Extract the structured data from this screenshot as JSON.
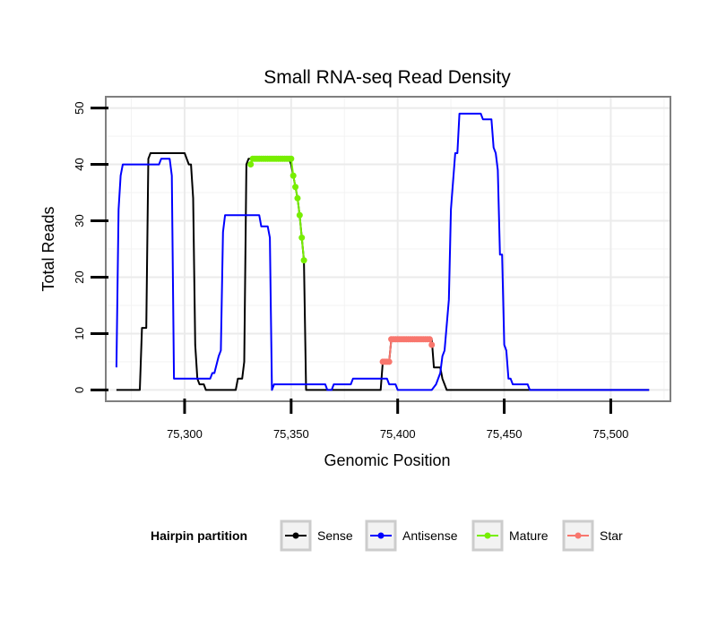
{
  "chart_data": {
    "type": "line",
    "title": "Small RNA-seq Read Density",
    "xlabel": "Genomic Position",
    "ylabel": "Total Reads",
    "xlim": [
      75263,
      75528
    ],
    "ylim": [
      -2,
      52
    ],
    "x_ticks": [
      75300,
      75350,
      75400,
      75450,
      75500
    ],
    "x_tick_labels": [
      "75,300",
      "75,350",
      "75,400",
      "75,450",
      "75,500"
    ],
    "y_ticks": [
      0,
      10,
      20,
      30,
      40,
      50
    ],
    "y_tick_labels": [
      "0",
      "10",
      "20",
      "30",
      "40",
      "50"
    ],
    "grid": true,
    "legend": {
      "title": "Hairpin partition",
      "position": "bottom",
      "entries": [
        "Sense",
        "Antisense",
        "Mature",
        "Star"
      ]
    },
    "series": [
      {
        "name": "Sense",
        "color": "#000000",
        "points": [
          [
            75268,
            0
          ],
          [
            75279,
            0
          ],
          [
            75280,
            11
          ],
          [
            75282,
            11
          ],
          [
            75283,
            41
          ],
          [
            75284,
            42
          ],
          [
            75300,
            42
          ],
          [
            75302,
            40
          ],
          [
            75303,
            40
          ],
          [
            75304,
            34
          ],
          [
            75305,
            8
          ],
          [
            75306,
            2
          ],
          [
            75307,
            1
          ],
          [
            75309,
            1
          ],
          [
            75310,
            0
          ],
          [
            75324,
            0
          ],
          [
            75325,
            2
          ],
          [
            75327,
            2
          ],
          [
            75328,
            5
          ],
          [
            75329,
            40
          ],
          [
            75330,
            41
          ],
          [
            75349,
            41
          ],
          [
            75350,
            40
          ],
          [
            75351,
            38
          ],
          [
            75352,
            36
          ],
          [
            75353,
            34
          ],
          [
            75354,
            31
          ],
          [
            75355,
            27
          ],
          [
            75356,
            23
          ],
          [
            75357,
            0
          ],
          [
            75392,
            0
          ],
          [
            75393,
            5
          ],
          [
            75396,
            5
          ],
          [
            75397,
            9
          ],
          [
            75416,
            9
          ],
          [
            75417,
            4
          ],
          [
            75420,
            4
          ],
          [
            75421,
            2
          ],
          [
            75423,
            0
          ],
          [
            75518,
            0
          ]
        ]
      },
      {
        "name": "Antisense",
        "color": "#0000ff",
        "points": [
          [
            75268,
            4
          ],
          [
            75269,
            32
          ],
          [
            75270,
            38
          ],
          [
            75271,
            40
          ],
          [
            75288,
            40
          ],
          [
            75289,
            41
          ],
          [
            75293,
            41
          ],
          [
            75294,
            38
          ],
          [
            75295,
            2
          ],
          [
            75312,
            2
          ],
          [
            75313,
            3
          ],
          [
            75314,
            3
          ],
          [
            75316,
            6
          ],
          [
            75317,
            7
          ],
          [
            75318,
            28
          ],
          [
            75319,
            31
          ],
          [
            75335,
            31
          ],
          [
            75336,
            29
          ],
          [
            75339,
            29
          ],
          [
            75340,
            27
          ],
          [
            75341,
            0
          ],
          [
            75342,
            1
          ],
          [
            75366,
            1
          ],
          [
            75367,
            0
          ],
          [
            75369,
            0
          ],
          [
            75370,
            1
          ],
          [
            75378,
            1
          ],
          [
            75379,
            2
          ],
          [
            75395,
            2
          ],
          [
            75396,
            1
          ],
          [
            75399,
            1
          ],
          [
            75400,
            0
          ],
          [
            75416,
            0
          ],
          [
            75418,
            1
          ],
          [
            75420,
            3
          ],
          [
            75421,
            6
          ],
          [
            75422,
            7
          ],
          [
            75424,
            16
          ],
          [
            75425,
            32
          ],
          [
            75426,
            37
          ],
          [
            75427,
            42
          ],
          [
            75428,
            42
          ],
          [
            75429,
            49
          ],
          [
            75439,
            49
          ],
          [
            75440,
            48
          ],
          [
            75444,
            48
          ],
          [
            75445,
            43
          ],
          [
            75446,
            42
          ],
          [
            75447,
            39
          ],
          [
            75448,
            24
          ],
          [
            75449,
            24
          ],
          [
            75450,
            8
          ],
          [
            75451,
            7
          ],
          [
            75452,
            2
          ],
          [
            75453,
            2
          ],
          [
            75454,
            1
          ],
          [
            75461,
            1
          ],
          [
            75462,
            0
          ],
          [
            75518,
            0
          ]
        ]
      },
      {
        "name": "Mature",
        "color": "#77ee00",
        "points": [
          [
            75331,
            40
          ],
          [
            75332,
            41
          ],
          [
            75333,
            41
          ],
          [
            75334,
            41
          ],
          [
            75335,
            41
          ],
          [
            75336,
            41
          ],
          [
            75337,
            41
          ],
          [
            75338,
            41
          ],
          [
            75339,
            41
          ],
          [
            75340,
            41
          ],
          [
            75341,
            41
          ],
          [
            75342,
            41
          ],
          [
            75343,
            41
          ],
          [
            75344,
            41
          ],
          [
            75345,
            41
          ],
          [
            75346,
            41
          ],
          [
            75347,
            41
          ],
          [
            75348,
            41
          ],
          [
            75349,
            41
          ],
          [
            75350,
            41
          ],
          [
            75351,
            38
          ],
          [
            75352,
            36
          ],
          [
            75353,
            34
          ],
          [
            75354,
            31
          ],
          [
            75355,
            27
          ],
          [
            75356,
            23
          ]
        ]
      },
      {
        "name": "Star",
        "color": "#f8766d",
        "points": [
          [
            75393,
            5
          ],
          [
            75394,
            5
          ],
          [
            75395,
            5
          ],
          [
            75396,
            5
          ],
          [
            75397,
            9
          ],
          [
            75398,
            9
          ],
          [
            75399,
            9
          ],
          [
            75400,
            9
          ],
          [
            75401,
            9
          ],
          [
            75402,
            9
          ],
          [
            75403,
            9
          ],
          [
            75404,
            9
          ],
          [
            75405,
            9
          ],
          [
            75406,
            9
          ],
          [
            75407,
            9
          ],
          [
            75408,
            9
          ],
          [
            75409,
            9
          ],
          [
            75410,
            9
          ],
          [
            75411,
            9
          ],
          [
            75412,
            9
          ],
          [
            75413,
            9
          ],
          [
            75414,
            9
          ],
          [
            75415,
            9
          ],
          [
            75416,
            8
          ]
        ]
      }
    ]
  }
}
